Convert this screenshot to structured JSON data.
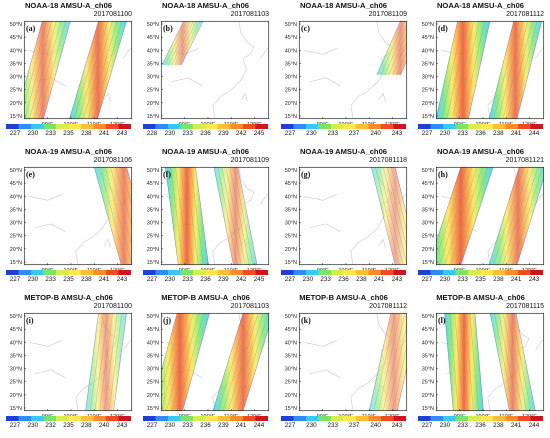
{
  "lat_labels": [
    "50°N",
    "45°N",
    "40°N",
    "35°N",
    "30°N",
    "25°N",
    "20°N",
    "15°N"
  ],
  "lon_labels": [
    "90°E",
    "100°E",
    "110°E",
    "120°E"
  ],
  "colors": {
    "colorbar_stops": [
      "#1f3fd8",
      "#2f8bff",
      "#35c9ff",
      "#7ae46a",
      "#d6ee4a",
      "#ffe84a",
      "#ffbf35",
      "#ff8a2a",
      "#f24a22",
      "#cf1420"
    ],
    "coast": "#c9c9c9",
    "frame": "#222222"
  },
  "panels": [
    {
      "title": "NOAA-18 AMSU-A_ch06",
      "date": "2017081100",
      "label": "(a)",
      "ticks": [
        "227",
        "230",
        "233",
        "235",
        "238",
        "241",
        "243"
      ],
      "swaths": [
        {
          "x0": 0.3,
          "x1": 0.05,
          "w": 0.26,
          "o": 0.7
        },
        {
          "x0": 0.82,
          "x1": 0.55,
          "w": 0.26,
          "o": 0.8
        }
      ]
    },
    {
      "title": "NOAA-18 AMSU-A_ch06",
      "date": "2017081103",
      "label": "(b)",
      "ticks": [
        "228",
        "230",
        "233",
        "236",
        "239",
        "242",
        "245"
      ],
      "swaths": [
        {
          "x0": 0.3,
          "x1": -0.15,
          "w": 0.18,
          "o": 0.55,
          "ystop": 0.45
        }
      ]
    },
    {
      "title": "NOAA-18 AMSU-A_ch06",
      "date": "2017081109",
      "label": "(c)",
      "ticks": [
        "227",
        "230",
        "233",
        "237",
        "240",
        "243"
      ],
      "swaths": [
        {
          "x0": 1.05,
          "x1": 0.65,
          "w": 0.22,
          "o": 0.6,
          "ystop": 0.55
        }
      ]
    },
    {
      "title": "NOAA-18 AMSU-A_ch06",
      "date": "2017081112",
      "label": "(d)",
      "ticks": [
        "227",
        "230",
        "233",
        "236",
        "238",
        "241",
        "244"
      ],
      "swaths": [
        {
          "x0": 0.35,
          "x1": 0.15,
          "w": 0.3,
          "o": 0.85
        },
        {
          "x0": 0.85,
          "x1": 0.62,
          "w": 0.26,
          "o": 0.8
        }
      ]
    },
    {
      "title": "NOAA-19 AMSU-A_ch06",
      "date": "2017081106",
      "label": "(e)",
      "ticks": [
        "227",
        "230",
        "233",
        "235",
        "238",
        "241",
        "243"
      ],
      "swaths": [
        {
          "x0": 0.8,
          "x1": 1.05,
          "w": 0.3,
          "o": 0.7
        }
      ]
    },
    {
      "title": "NOAA-19 AMSU-A_ch06",
      "date": "2017081109",
      "label": "(f)",
      "ticks": [
        "227",
        "230",
        "233",
        "236",
        "239",
        "242",
        "245"
      ],
      "swaths": [
        {
          "x0": 0.18,
          "x1": 0.3,
          "w": 0.28,
          "o": 0.85
        },
        {
          "x0": 0.6,
          "x1": 0.78,
          "w": 0.22,
          "o": 0.6
        }
      ]
    },
    {
      "title": "NOAA-19 AMSU-A_ch06",
      "date": "2017081118",
      "label": "(g)",
      "ticks": [
        "227",
        "230",
        "233",
        "236",
        "238",
        "241",
        "243"
      ],
      "swaths": [
        {
          "x0": 0.78,
          "x1": 1.0,
          "w": 0.22,
          "o": 0.5
        }
      ]
    },
    {
      "title": "NOAA-19 AMSU-A_ch06",
      "date": "2017081121",
      "label": "(h)",
      "ticks": [
        "227",
        "230",
        "233",
        "235",
        "238",
        "241",
        "243"
      ],
      "swaths": [
        {
          "x0": 0.38,
          "x1": 0.08,
          "w": 0.3,
          "o": 0.85
        },
        {
          "x0": 0.9,
          "x1": 0.62,
          "w": 0.26,
          "o": 0.75
        }
      ]
    },
    {
      "title": "METOP-B AMSU-A_ch06",
      "date": "2017081100",
      "label": "(i)",
      "ticks": [
        "227",
        "230",
        "232",
        "235",
        "238",
        "240",
        "243"
      ],
      "swaths": [
        {
          "x0": 0.82,
          "x1": 0.7,
          "w": 0.26,
          "o": 0.55
        }
      ]
    },
    {
      "title": "METOP-B AMSU-A_ch06",
      "date": "2017081103",
      "label": "(j)",
      "ticks": [
        "227",
        "230",
        "233",
        "236",
        "239",
        "241",
        "244"
      ],
      "swaths": [
        {
          "x0": 0.3,
          "x1": 0.05,
          "w": 0.3,
          "o": 0.85
        },
        {
          "x0": 0.9,
          "x1": 0.62,
          "w": 0.28,
          "o": 0.8
        }
      ]
    },
    {
      "title": "METOP-B AMSU-A_ch06",
      "date": "2017081112",
      "label": "(k)",
      "ticks": [
        "227",
        "230",
        "233",
        "237",
        "240",
        "243"
      ],
      "swaths": [
        {
          "x0": 0.98,
          "x1": 0.78,
          "w": 0.26,
          "o": 0.55
        }
      ]
    },
    {
      "title": "METOP-B AMSU-A_ch06",
      "date": "2017081115",
      "label": "(l)",
      "ticks": [
        "227",
        "230",
        "233",
        "236",
        "238",
        "241",
        "244"
      ],
      "swaths": [
        {
          "x0": 0.22,
          "x1": 0.3,
          "w": 0.28,
          "o": 0.85
        },
        {
          "x0": 0.62,
          "x1": 0.8,
          "w": 0.24,
          "o": 0.7
        }
      ]
    }
  ]
}
